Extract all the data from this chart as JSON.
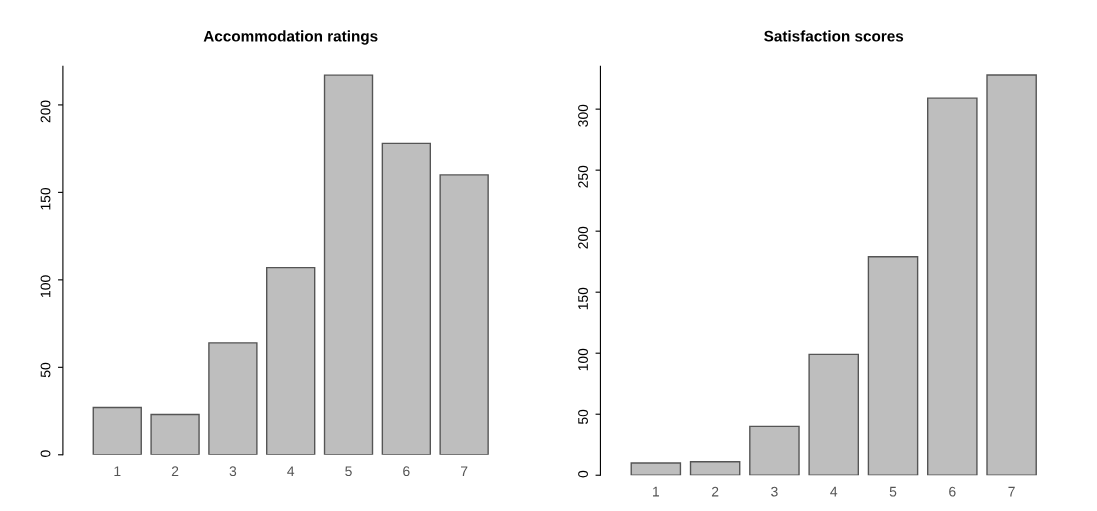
{
  "chart_data": [
    {
      "type": "bar",
      "title": "Accommodation ratings",
      "categories": [
        "1",
        "2",
        "3",
        "4",
        "5",
        "6",
        "7"
      ],
      "values": [
        27,
        23,
        64,
        107,
        217,
        178,
        160
      ],
      "color": "#bebebe",
      "ylim": [
        0,
        222
      ],
      "yticks": [
        0,
        50,
        100,
        150,
        200
      ],
      "grid": false,
      "legend": false
    },
    {
      "type": "bar",
      "title": "Satisfaction scores",
      "categories": [
        "1",
        "2",
        "3",
        "4",
        "5",
        "6",
        "7"
      ],
      "values": [
        10,
        11,
        40,
        99,
        179,
        309,
        328
      ],
      "color": "#bebebe",
      "ylim": [
        0,
        335
      ],
      "yticks": [
        0,
        50,
        100,
        150,
        200,
        250,
        300
      ],
      "grid": false,
      "legend": false
    }
  ]
}
